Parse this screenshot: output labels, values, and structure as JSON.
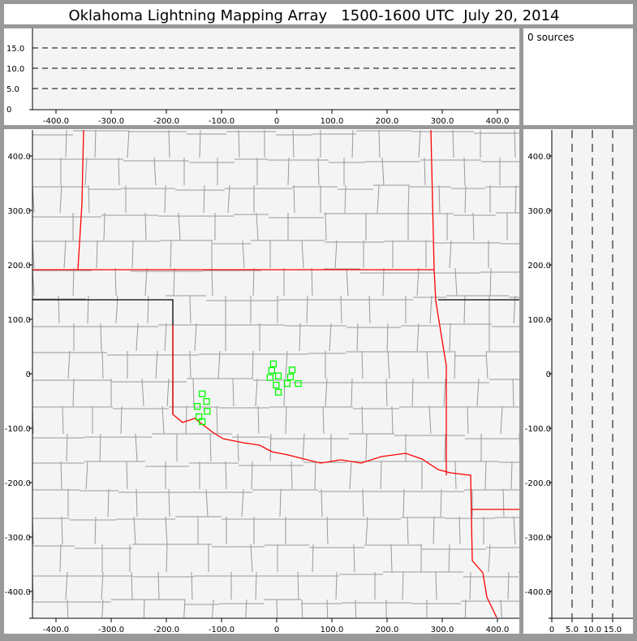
{
  "title": "Oklahoma Lightning Mapping Array   1500-1600 UTC  July 20, 2014",
  "source_count": "0 sources",
  "colors": {
    "background": "#999999",
    "panel": "#f4f4f4",
    "state_border": "#ff0000",
    "county_border": "#999999",
    "source_marker": "#00ff00"
  },
  "chart_data": [
    {
      "type": "line",
      "panel": "altitude-vs-east-west",
      "x_ticks": [
        "-400.0",
        "-300.0",
        "-200.0",
        "-100.0",
        "0",
        "100.0",
        "200.0",
        "300.0",
        "400.0"
      ],
      "x_tick_values": [
        -400,
        -300,
        -200,
        -100,
        0,
        100,
        200,
        300,
        400
      ],
      "y_ticks": [
        "0",
        "5.0",
        "10.0",
        "15.0"
      ],
      "y_tick_values": [
        0,
        5,
        10,
        15
      ],
      "xlim": [
        -442,
        442
      ],
      "ylim": [
        0,
        20
      ],
      "dashed_reference_lines": [
        5,
        10,
        15
      ]
    },
    {
      "type": "scatter",
      "panel": "plan-view-map",
      "x_ticks": [
        "-400.0",
        "-300.0",
        "-200.0",
        "-100.0",
        "0",
        "100.0",
        "200.0",
        "300.0",
        "400.0"
      ],
      "x_tick_values": [
        -400,
        -300,
        -200,
        -100,
        0,
        100,
        200,
        300,
        400
      ],
      "y_ticks": [
        "400.0",
        "300.0",
        "200.0",
        "100.0",
        "0",
        "-100.0",
        "-200.0",
        "-300.0",
        "-400.0"
      ],
      "y_tick_values": [
        400,
        300,
        200,
        100,
        0,
        -100,
        -200,
        -300,
        -400
      ],
      "xlim": [
        -442,
        442
      ],
      "ylim": [
        -448,
        448
      ],
      "marker": "open-square",
      "points": [
        {
          "x": -6,
          "y": 18
        },
        {
          "x": -9,
          "y": 6
        },
        {
          "x": -12,
          "y": -7
        },
        {
          "x": 3,
          "y": -4
        },
        {
          "x": -1,
          "y": -21
        },
        {
          "x": 3,
          "y": -34
        },
        {
          "x": 28,
          "y": 7
        },
        {
          "x": 25,
          "y": -6
        },
        {
          "x": 19,
          "y": -18
        },
        {
          "x": 39,
          "y": -18
        },
        {
          "x": -135,
          "y": -37
        },
        {
          "x": -127,
          "y": -51
        },
        {
          "x": -144,
          "y": -60
        },
        {
          "x": -126,
          "y": -69
        },
        {
          "x": -141,
          "y": -79
        },
        {
          "x": -135,
          "y": -88
        }
      ]
    },
    {
      "type": "line",
      "panel": "north-south-vs-altitude",
      "x_ticks": [
        "0",
        "5.0",
        "10.0",
        "15.0"
      ],
      "x_tick_values": [
        0,
        5,
        10,
        15
      ],
      "y_ticks": [
        "400.0",
        "300.0",
        "200.0",
        "100.0",
        "0",
        "-100.0",
        "-200.0",
        "-300.0",
        "-400.0"
      ],
      "y_tick_values": [
        400,
        300,
        200,
        100,
        0,
        -100,
        -200,
        -300,
        -400
      ],
      "xlim": [
        0,
        20
      ],
      "ylim": [
        -448,
        448
      ],
      "dashed_reference_lines": [
        5,
        10,
        15
      ]
    }
  ]
}
